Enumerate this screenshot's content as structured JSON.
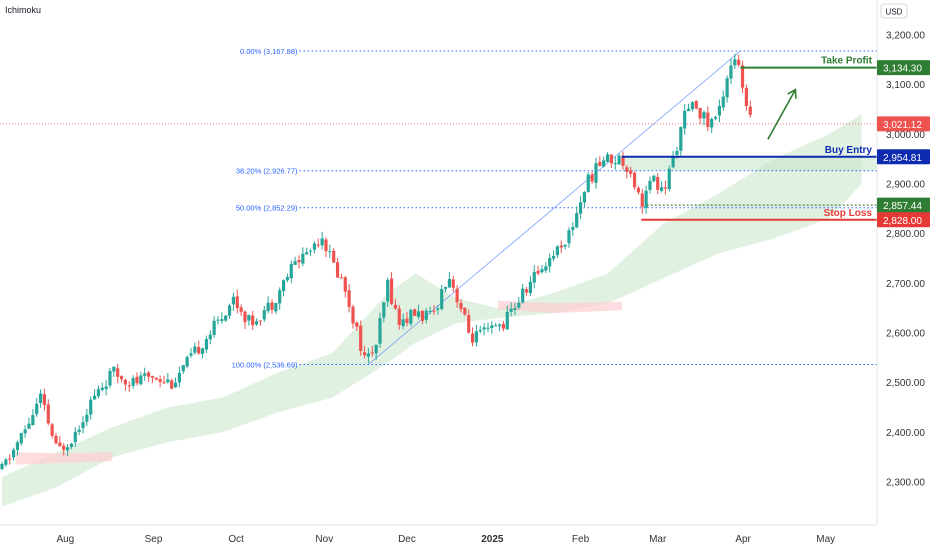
{
  "indicator_label": "Ichimoku",
  "currency_label": "USD",
  "colors": {
    "up": "#26a69a",
    "down": "#ef5350",
    "cloud_bull": "#c8e6c9",
    "cloud_bear": "#ffcdd2",
    "fib": "#2962ff",
    "take_profit": "#2e7d32",
    "buy_entry": "#0d2bb0",
    "stop_loss": "#e53935",
    "axis_text": "#333333"
  },
  "chart_data": {
    "type": "candlestick",
    "ylim": [
      2255,
      3225
    ],
    "y_ticks": [
      "3,200.00",
      "3,100.00",
      "3,000.00",
      "2,900.00",
      "2,800.00",
      "2,700.00",
      "2,600.00",
      "2,500.00",
      "2,400.00",
      "2,300.00"
    ],
    "x_ticks": [
      {
        "label": "Aug",
        "bold": false,
        "day": 23
      },
      {
        "label": "Sep",
        "bold": false,
        "day": 55
      },
      {
        "label": "Oct",
        "bold": false,
        "day": 85
      },
      {
        "label": "Nov",
        "bold": false,
        "day": 117
      },
      {
        "label": "Dec",
        "bold": false,
        "day": 147
      },
      {
        "label": "2025",
        "bold": true,
        "day": 178
      },
      {
        "label": "Feb",
        "bold": false,
        "day": 210
      },
      {
        "label": "Mar",
        "bold": false,
        "day": 238
      },
      {
        "label": "Apr",
        "bold": false,
        "day": 269
      },
      {
        "label": "May",
        "bold": false,
        "day": 299
      }
    ],
    "price_anchors": [
      [
        0,
        2325
      ],
      [
        8,
        2400
      ],
      [
        14,
        2470
      ],
      [
        20,
        2360
      ],
      [
        26,
        2395
      ],
      [
        32,
        2460
      ],
      [
        40,
        2520
      ],
      [
        48,
        2500
      ],
      [
        55,
        2515
      ],
      [
        62,
        2500
      ],
      [
        70,
        2560
      ],
      [
        78,
        2620
      ],
      [
        84,
        2670
      ],
      [
        90,
        2620
      ],
      [
        98,
        2660
      ],
      [
        106,
        2740
      ],
      [
        112,
        2770
      ],
      [
        116,
        2800
      ],
      [
        120,
        2740
      ],
      [
        124,
        2700
      ],
      [
        128,
        2620
      ],
      [
        132,
        2540
      ],
      [
        136,
        2580
      ],
      [
        140,
        2700
      ],
      [
        144,
        2620
      ],
      [
        150,
        2640
      ],
      [
        156,
        2630
      ],
      [
        162,
        2720
      ],
      [
        166,
        2660
      ],
      [
        170,
        2590
      ],
      [
        176,
        2600
      ],
      [
        182,
        2620
      ],
      [
        188,
        2670
      ],
      [
        194,
        2720
      ],
      [
        200,
        2760
      ],
      [
        206,
        2800
      ],
      [
        212,
        2900
      ],
      [
        218,
        2950
      ],
      [
        224,
        2950
      ],
      [
        228,
        2930
      ],
      [
        232,
        2860
      ],
      [
        236,
        2910
      ],
      [
        240,
        2880
      ],
      [
        244,
        2960
      ],
      [
        248,
        3040
      ],
      [
        252,
        3060
      ],
      [
        256,
        3020
      ],
      [
        260,
        3040
      ],
      [
        264,
        3140
      ],
      [
        266,
        3155
      ],
      [
        268,
        3120
      ],
      [
        270,
        3050
      ],
      [
        272,
        3021.12
      ]
    ],
    "cloud_bull_upper": [
      [
        0,
        2310
      ],
      [
        20,
        2360
      ],
      [
        40,
        2410
      ],
      [
        60,
        2450
      ],
      [
        80,
        2470
      ],
      [
        100,
        2520
      ],
      [
        120,
        2560
      ],
      [
        140,
        2680
      ],
      [
        150,
        2720
      ],
      [
        165,
        2670
      ],
      [
        180,
        2650
      ],
      [
        200,
        2680
      ],
      [
        220,
        2720
      ],
      [
        240,
        2820
      ],
      [
        260,
        2880
      ],
      [
        280,
        2950
      ],
      [
        300,
        3000
      ],
      [
        312,
        3040
      ]
    ],
    "cloud_bull_lower": [
      [
        0,
        2250
      ],
      [
        20,
        2290
      ],
      [
        40,
        2350
      ],
      [
        60,
        2380
      ],
      [
        80,
        2400
      ],
      [
        100,
        2440
      ],
      [
        120,
        2470
      ],
      [
        140,
        2540
      ],
      [
        150,
        2580
      ],
      [
        165,
        2620
      ],
      [
        180,
        2630
      ],
      [
        200,
        2640
      ],
      [
        220,
        2660
      ],
      [
        240,
        2710
      ],
      [
        260,
        2760
      ],
      [
        280,
        2790
      ],
      [
        300,
        2830
      ],
      [
        312,
        2900
      ]
    ],
    "cloud_bear": [
      {
        "upper": [
          [
            5,
            2360
          ],
          [
            20,
            2358
          ],
          [
            40,
            2360
          ]
        ],
        "lower": [
          [
            5,
            2335
          ],
          [
            20,
            2338
          ],
          [
            40,
            2342
          ]
        ]
      },
      {
        "upper": [
          [
            180,
            2665
          ],
          [
            200,
            2660
          ],
          [
            225,
            2663
          ]
        ],
        "lower": [
          [
            180,
            2648
          ],
          [
            200,
            2640
          ],
          [
            225,
            2646
          ]
        ]
      }
    ],
    "trend_line": {
      "x1": 133,
      "y1": 2536.69,
      "x2": 268,
      "y2": 3167.88
    },
    "fib_levels": [
      {
        "label": "0.00% (3,167.88)",
        "value": 3167.88,
        "x_start": 108
      },
      {
        "label": "38.20% (2,926.77)",
        "value": 2926.77,
        "x_start": 108
      },
      {
        "label": "50.00% (2,852.29)",
        "value": 2852.29,
        "x_start": 108
      },
      {
        "label": "100.00% (2,536.69)",
        "value": 2536.69,
        "x_start": 108
      }
    ],
    "current_price": {
      "value": 3021.12,
      "label": "3,021.12"
    },
    "levels": [
      {
        "name": "Take Profit",
        "value": 3134.3,
        "label": "3,134.30",
        "x_start": 268,
        "kind": "take_profit"
      },
      {
        "name": "Buy Entry",
        "value": 2954.81,
        "label": "2,954.81",
        "x_start": 225,
        "kind": "buy_entry"
      },
      {
        "name": "",
        "value": 2857.44,
        "label": "2,857.44",
        "x_start": 234,
        "kind": "swing"
      },
      {
        "name": "Stop Loss",
        "value": 2828.0,
        "label": "2,828.00",
        "x_start": 232,
        "kind": "stop_loss"
      }
    ],
    "entry_zone": {
      "top": 2954.81,
      "bottom": 2926.77,
      "x_start": 225
    },
    "arrow": {
      "from_day": 278,
      "from_value": 2990,
      "to_day": 288,
      "to_value": 3090
    }
  }
}
